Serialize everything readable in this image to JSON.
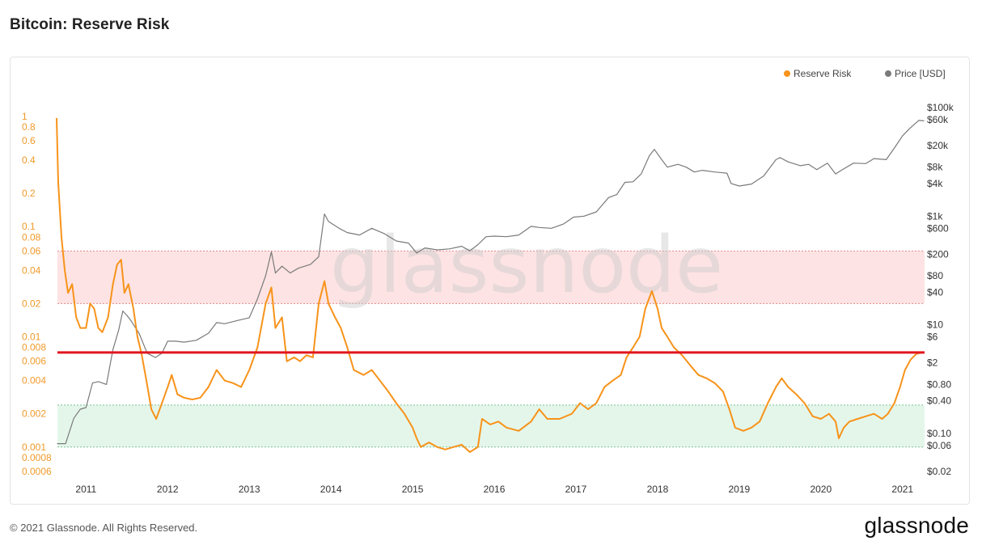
{
  "page": {
    "title": "Bitcoin: Reserve Risk",
    "footer_copyright": "© 2021 Glassnode. All Rights Reserved.",
    "footer_logo": "glassnode",
    "watermark": "glassnode"
  },
  "chart_data": {
    "type": "line",
    "title": "Bitcoin: Reserve Risk",
    "legend": {
      "placement": "top-right",
      "entries": [
        {
          "name": "Reserve Risk",
          "color": "#f7931a"
        },
        {
          "name": "Price [USD]",
          "color": "#7a7a7a"
        }
      ]
    },
    "x_axis": {
      "type": "time",
      "range": [
        2010.65,
        2021.27
      ],
      "ticks": [
        "2011",
        "2012",
        "2013",
        "2014",
        "2015",
        "2016",
        "2017",
        "2018",
        "2019",
        "2020",
        "2021"
      ]
    },
    "y_left": {
      "label": "",
      "scale": "log",
      "range": [
        0.0006,
        1.2
      ],
      "color": "#f09a2a",
      "ticks": [
        {
          "v": 1,
          "t": "1"
        },
        {
          "v": 0.8,
          "t": "0.8"
        },
        {
          "v": 0.6,
          "t": "0.6"
        },
        {
          "v": 0.4,
          "t": "0.4"
        },
        {
          "v": 0.2,
          "t": "0.2"
        },
        {
          "v": 0.1,
          "t": "0.1"
        },
        {
          "v": 0.08,
          "t": "0.08"
        },
        {
          "v": 0.06,
          "t": "0.06"
        },
        {
          "v": 0.04,
          "t": "0.04"
        },
        {
          "v": 0.02,
          "t": "0.02"
        },
        {
          "v": 0.01,
          "t": "0.01"
        },
        {
          "v": 0.008,
          "t": "0.008"
        },
        {
          "v": 0.006,
          "t": "0.006"
        },
        {
          "v": 0.004,
          "t": "0.004"
        },
        {
          "v": 0.002,
          "t": "0.002"
        },
        {
          "v": 0.001,
          "t": "0.001"
        },
        {
          "v": 0.0008,
          "t": "0.0008"
        },
        {
          "v": 0.0006,
          "t": "0.0006"
        }
      ]
    },
    "y_right": {
      "label": "",
      "scale": "log",
      "range": [
        0.02,
        100000
      ],
      "ticks": [
        {
          "v": 100000,
          "t": "$100k"
        },
        {
          "v": 60000,
          "t": "$60k"
        },
        {
          "v": 20000,
          "t": "$20k"
        },
        {
          "v": 8000,
          "t": "$8k"
        },
        {
          "v": 4000,
          "t": "$4k"
        },
        {
          "v": 1000,
          "t": "$1k"
        },
        {
          "v": 600,
          "t": "$600"
        },
        {
          "v": 200,
          "t": "$200"
        },
        {
          "v": 80,
          "t": "$80"
        },
        {
          "v": 40,
          "t": "$40"
        },
        {
          "v": 10,
          "t": "$10"
        },
        {
          "v": 6,
          "t": "$6"
        },
        {
          "v": 2,
          "t": "$2"
        },
        {
          "v": 0.8,
          "t": "$0.80"
        },
        {
          "v": 0.4,
          "t": "$0.40"
        },
        {
          "v": 0.1,
          "t": "$0.10"
        },
        {
          "v": 0.06,
          "t": "$0.06"
        },
        {
          "v": 0.02,
          "t": "$0.02"
        }
      ]
    },
    "bands": [
      {
        "from": 0.02,
        "to": 0.06,
        "color": "#fde3e3",
        "border": "#e48a8a"
      },
      {
        "from": 0.001,
        "to": 0.0024,
        "color": "#e4f6ea",
        "border": "#7bc496"
      }
    ],
    "threshold_line": {
      "value": 0.0072,
      "color": "#e0161f"
    },
    "series": [
      {
        "name": "Reserve Risk",
        "color": "#f7931a",
        "axis": "left",
        "points": [
          [
            2010.64,
            0.95
          ],
          [
            2010.66,
            0.25
          ],
          [
            2010.7,
            0.08
          ],
          [
            2010.74,
            0.04
          ],
          [
            2010.78,
            0.025
          ],
          [
            2010.83,
            0.03
          ],
          [
            2010.88,
            0.015
          ],
          [
            2010.93,
            0.012
          ],
          [
            2011.0,
            0.012
          ],
          [
            2011.05,
            0.02
          ],
          [
            2011.1,
            0.018
          ],
          [
            2011.15,
            0.012
          ],
          [
            2011.2,
            0.011
          ],
          [
            2011.27,
            0.015
          ],
          [
            2011.33,
            0.03
          ],
          [
            2011.38,
            0.045
          ],
          [
            2011.43,
            0.05
          ],
          [
            2011.47,
            0.025
          ],
          [
            2011.52,
            0.03
          ],
          [
            2011.58,
            0.018
          ],
          [
            2011.63,
            0.01
          ],
          [
            2011.68,
            0.007
          ],
          [
            2011.74,
            0.004
          ],
          [
            2011.8,
            0.0022
          ],
          [
            2011.86,
            0.0018
          ],
          [
            2011.93,
            0.0025
          ],
          [
            2012.0,
            0.0035
          ],
          [
            2012.05,
            0.0045
          ],
          [
            2012.12,
            0.003
          ],
          [
            2012.2,
            0.0028
          ],
          [
            2012.3,
            0.0027
          ],
          [
            2012.4,
            0.0028
          ],
          [
            2012.5,
            0.0035
          ],
          [
            2012.6,
            0.005
          ],
          [
            2012.7,
            0.004
          ],
          [
            2012.8,
            0.0038
          ],
          [
            2012.9,
            0.0035
          ],
          [
            2013.0,
            0.005
          ],
          [
            2013.1,
            0.008
          ],
          [
            2013.2,
            0.02
          ],
          [
            2013.27,
            0.028
          ],
          [
            2013.32,
            0.012
          ],
          [
            2013.4,
            0.015
          ],
          [
            2013.46,
            0.006
          ],
          [
            2013.55,
            0.0065
          ],
          [
            2013.62,
            0.006
          ],
          [
            2013.7,
            0.0068
          ],
          [
            2013.78,
            0.0065
          ],
          [
            2013.85,
            0.02
          ],
          [
            2013.92,
            0.032
          ],
          [
            2013.97,
            0.02
          ],
          [
            2014.05,
            0.015
          ],
          [
            2014.12,
            0.012
          ],
          [
            2014.2,
            0.008
          ],
          [
            2014.28,
            0.005
          ],
          [
            2014.4,
            0.0045
          ],
          [
            2014.5,
            0.005
          ],
          [
            2014.6,
            0.004
          ],
          [
            2014.7,
            0.0032
          ],
          [
            2014.8,
            0.0025
          ],
          [
            2014.9,
            0.002
          ],
          [
            2015.0,
            0.0015
          ],
          [
            2015.05,
            0.0012
          ],
          [
            2015.1,
            0.001
          ],
          [
            2015.2,
            0.0011
          ],
          [
            2015.3,
            0.001
          ],
          [
            2015.4,
            0.00095
          ],
          [
            2015.5,
            0.001
          ],
          [
            2015.6,
            0.00105
          ],
          [
            2015.7,
            0.0009
          ],
          [
            2015.8,
            0.001
          ],
          [
            2015.85,
            0.0018
          ],
          [
            2015.95,
            0.0016
          ],
          [
            2016.05,
            0.0017
          ],
          [
            2016.15,
            0.0015
          ],
          [
            2016.3,
            0.0014
          ],
          [
            2016.45,
            0.0017
          ],
          [
            2016.55,
            0.0022
          ],
          [
            2016.65,
            0.0018
          ],
          [
            2016.8,
            0.0018
          ],
          [
            2016.95,
            0.002
          ],
          [
            2017.05,
            0.0025
          ],
          [
            2017.15,
            0.0022
          ],
          [
            2017.25,
            0.0025
          ],
          [
            2017.35,
            0.0035
          ],
          [
            2017.45,
            0.004
          ],
          [
            2017.55,
            0.0045
          ],
          [
            2017.62,
            0.0065
          ],
          [
            2017.7,
            0.008
          ],
          [
            2017.78,
            0.01
          ],
          [
            2017.85,
            0.018
          ],
          [
            2017.93,
            0.026
          ],
          [
            2018.0,
            0.018
          ],
          [
            2018.05,
            0.012
          ],
          [
            2018.12,
            0.01
          ],
          [
            2018.2,
            0.008
          ],
          [
            2018.3,
            0.0068
          ],
          [
            2018.4,
            0.0055
          ],
          [
            2018.5,
            0.0045
          ],
          [
            2018.6,
            0.0042
          ],
          [
            2018.7,
            0.0038
          ],
          [
            2018.8,
            0.0032
          ],
          [
            2018.88,
            0.0022
          ],
          [
            2018.95,
            0.0015
          ],
          [
            2019.05,
            0.0014
          ],
          [
            2019.15,
            0.0015
          ],
          [
            2019.25,
            0.0017
          ],
          [
            2019.35,
            0.0025
          ],
          [
            2019.45,
            0.0035
          ],
          [
            2019.52,
            0.0042
          ],
          [
            2019.6,
            0.0035
          ],
          [
            2019.7,
            0.003
          ],
          [
            2019.8,
            0.0025
          ],
          [
            2019.9,
            0.0019
          ],
          [
            2020.0,
            0.0018
          ],
          [
            2020.1,
            0.002
          ],
          [
            2020.18,
            0.0017
          ],
          [
            2020.22,
            0.0012
          ],
          [
            2020.28,
            0.0015
          ],
          [
            2020.35,
            0.0017
          ],
          [
            2020.45,
            0.0018
          ],
          [
            2020.55,
            0.0019
          ],
          [
            2020.65,
            0.002
          ],
          [
            2020.75,
            0.0018
          ],
          [
            2020.82,
            0.002
          ],
          [
            2020.9,
            0.0025
          ],
          [
            2020.97,
            0.0035
          ],
          [
            2021.03,
            0.005
          ],
          [
            2021.1,
            0.0062
          ],
          [
            2021.17,
            0.007
          ],
          [
            2021.24,
            0.0072
          ]
        ]
      },
      {
        "name": "Price [USD]",
        "color": "#7a7a7a",
        "axis": "right",
        "points": [
          [
            2010.65,
            0.065
          ],
          [
            2010.75,
            0.065
          ],
          [
            2010.85,
            0.19
          ],
          [
            2010.93,
            0.28
          ],
          [
            2011.0,
            0.3
          ],
          [
            2011.08,
            0.85
          ],
          [
            2011.15,
            0.9
          ],
          [
            2011.25,
            0.8
          ],
          [
            2011.33,
            3.5
          ],
          [
            2011.4,
            8
          ],
          [
            2011.45,
            18
          ],
          [
            2011.5,
            15
          ],
          [
            2011.55,
            12
          ],
          [
            2011.65,
            7
          ],
          [
            2011.75,
            3
          ],
          [
            2011.85,
            2.5
          ],
          [
            2011.93,
            3
          ],
          [
            2012.0,
            5
          ],
          [
            2012.1,
            5
          ],
          [
            2012.2,
            4.8
          ],
          [
            2012.35,
            5.2
          ],
          [
            2012.5,
            7
          ],
          [
            2012.6,
            11
          ],
          [
            2012.7,
            10.5
          ],
          [
            2012.85,
            12
          ],
          [
            2013.0,
            13.5
          ],
          [
            2013.1,
            30
          ],
          [
            2013.2,
            80
          ],
          [
            2013.27,
            220
          ],
          [
            2013.32,
            90
          ],
          [
            2013.4,
            120
          ],
          [
            2013.5,
            90
          ],
          [
            2013.6,
            110
          ],
          [
            2013.75,
            130
          ],
          [
            2013.85,
            180
          ],
          [
            2013.92,
            1100
          ],
          [
            2013.97,
            800
          ],
          [
            2014.1,
            600
          ],
          [
            2014.2,
            500
          ],
          [
            2014.35,
            450
          ],
          [
            2014.5,
            600
          ],
          [
            2014.65,
            480
          ],
          [
            2014.8,
            350
          ],
          [
            2014.95,
            320
          ],
          [
            2015.05,
            210
          ],
          [
            2015.15,
            260
          ],
          [
            2015.3,
            240
          ],
          [
            2015.45,
            250
          ],
          [
            2015.6,
            280
          ],
          [
            2015.7,
            230
          ],
          [
            2015.8,
            300
          ],
          [
            2015.9,
            420
          ],
          [
            2016.0,
            430
          ],
          [
            2016.15,
            420
          ],
          [
            2016.3,
            450
          ],
          [
            2016.45,
            650
          ],
          [
            2016.55,
            620
          ],
          [
            2016.7,
            600
          ],
          [
            2016.85,
            720
          ],
          [
            2016.97,
            960
          ],
          [
            2017.1,
            1000
          ],
          [
            2017.25,
            1200
          ],
          [
            2017.4,
            2200
          ],
          [
            2017.5,
            2500
          ],
          [
            2017.6,
            4200
          ],
          [
            2017.7,
            4300
          ],
          [
            2017.8,
            6000
          ],
          [
            2017.9,
            13000
          ],
          [
            2017.96,
            17000
          ],
          [
            2018.05,
            11000
          ],
          [
            2018.12,
            8000
          ],
          [
            2018.25,
            9000
          ],
          [
            2018.35,
            8000
          ],
          [
            2018.45,
            6500
          ],
          [
            2018.55,
            7000
          ],
          [
            2018.7,
            6500
          ],
          [
            2018.85,
            6200
          ],
          [
            2018.9,
            4000
          ],
          [
            2019.0,
            3600
          ],
          [
            2019.15,
            3900
          ],
          [
            2019.3,
            5500
          ],
          [
            2019.45,
            11000
          ],
          [
            2019.5,
            12000
          ],
          [
            2019.6,
            10000
          ],
          [
            2019.75,
            8500
          ],
          [
            2019.85,
            9000
          ],
          [
            2019.95,
            7200
          ],
          [
            2020.08,
            9500
          ],
          [
            2020.18,
            6000
          ],
          [
            2020.25,
            7000
          ],
          [
            2020.4,
            9500
          ],
          [
            2020.55,
            9300
          ],
          [
            2020.65,
            11500
          ],
          [
            2020.8,
            11000
          ],
          [
            2020.9,
            18000
          ],
          [
            2021.0,
            30000
          ],
          [
            2021.08,
            40000
          ],
          [
            2021.15,
            50000
          ],
          [
            2021.2,
            58000
          ],
          [
            2021.26,
            57000
          ]
        ]
      }
    ]
  }
}
